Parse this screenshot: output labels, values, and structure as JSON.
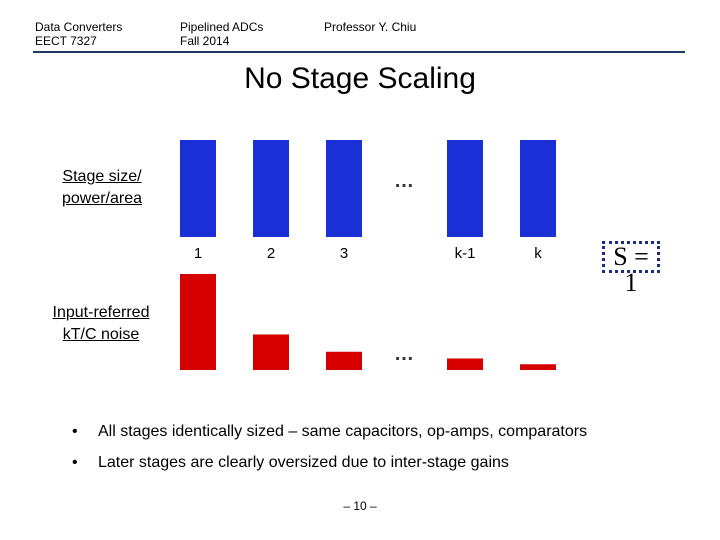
{
  "header": {
    "course": "Data Converters\nEECT 7327",
    "topic": "Pipelined ADCs\nFall 2014",
    "instructor": "Professor Y. Chiu"
  },
  "title": "No Stage Scaling",
  "labels": {
    "stage_size": "Stage size/\npower/area",
    "noise": "Input-referred\nkT/C noise"
  },
  "stage_numbers": [
    "1",
    "2",
    "3",
    "k-1",
    "k"
  ],
  "ellipsis": "…",
  "scaling_box": "S = 1",
  "bullets": [
    "All stages identically sized – same capacitors, op-amps, comparators",
    "Later stages are clearly oversized due to inter-stage gains"
  ],
  "bullet_mark": "•",
  "page_number": "– 10 –",
  "colors": {
    "blue_bar": "#1b2fd6",
    "red_bar": "#d60000",
    "rule": "#1f3864"
  },
  "bars": {
    "stage_size_relative": [
      1,
      1,
      1,
      1,
      1
    ],
    "noise_relative": [
      1,
      0.37,
      0.19,
      0.12,
      0.06
    ]
  }
}
